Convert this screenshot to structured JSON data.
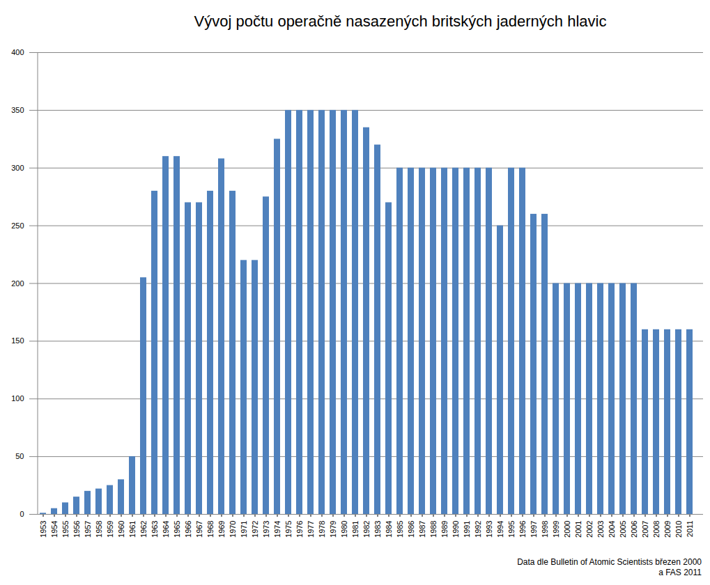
{
  "chart_data": {
    "type": "bar",
    "title": "Vývoj počtu operačně nasazených britských jaderných hlavic",
    "annotations": [
      "Data dle Bulletin of Atomic Scientists  březen 2000",
      "a  FAS 2011"
    ],
    "categories": [
      "1953",
      "1954",
      "1955",
      "1956",
      "1957",
      "1958",
      "1959",
      "1960",
      "1961",
      "1962",
      "1963",
      "1964",
      "1965",
      "1966",
      "1967",
      "1968",
      "1969",
      "1970",
      "1971",
      "1972",
      "1973",
      "1974",
      "1975",
      "1976",
      "1977",
      "1978",
      "1979",
      "1980",
      "1981",
      "1982",
      "1983",
      "1984",
      "1985",
      "1986",
      "1987",
      "1988",
      "1989",
      "1990",
      "1991",
      "1992",
      "1993",
      "1994",
      "1995",
      "1996",
      "1997",
      "1998",
      "1999",
      "2000",
      "2001",
      "2002",
      "2003",
      "2004",
      "2005",
      "2006",
      "2007",
      "2008",
      "2009",
      "2010",
      "2011"
    ],
    "values": [
      1,
      5,
      10,
      15,
      20,
      22,
      25,
      30,
      50,
      205,
      280,
      310,
      310,
      270,
      270,
      280,
      308,
      280,
      220,
      220,
      275,
      325,
      350,
      350,
      350,
      350,
      350,
      350,
      350,
      335,
      320,
      270,
      300,
      300,
      300,
      300,
      300,
      300,
      300,
      300,
      300,
      250,
      300,
      300,
      260,
      260,
      200,
      200,
      200,
      200,
      200,
      200,
      200,
      200,
      160,
      160,
      160,
      160,
      160
    ],
    "color": "#4f81bd",
    "ylim": [
      0,
      400
    ],
    "yticks": [
      0,
      50,
      100,
      150,
      200,
      250,
      300,
      350,
      400
    ],
    "grid": true
  }
}
